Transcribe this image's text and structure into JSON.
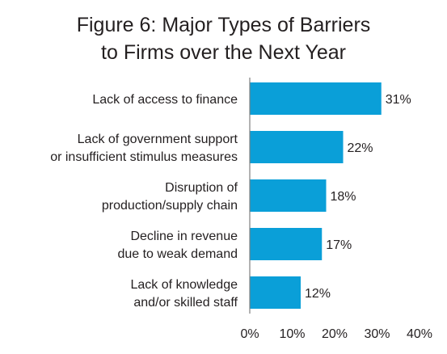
{
  "chart_data": {
    "type": "bar",
    "orientation": "horizontal",
    "title_lines": [
      "Figure 6: Major Types of Barriers",
      "to Firms over the Next Year"
    ],
    "categories": [
      [
        "Lack of access to finance"
      ],
      [
        "Lack of government support",
        "or insufficient stimulus measures"
      ],
      [
        "Disruption of",
        "production/supply chain"
      ],
      [
        "Decline in revenue",
        "due to weak demand"
      ],
      [
        "Lack of knowledge",
        "and/or skilled staff"
      ]
    ],
    "values": [
      31,
      22,
      18,
      17,
      12
    ],
    "value_labels": [
      "31%",
      "22%",
      "18%",
      "17%",
      "12%"
    ],
    "xlim": [
      0,
      40
    ],
    "xticks": [
      0,
      10,
      20,
      30,
      40
    ],
    "xtick_labels": [
      "0%",
      "10%",
      "20%",
      "30%",
      "40%"
    ],
    "bar_color": "#0a9fd8",
    "axis_color": "#7f7f7f",
    "grid": false
  }
}
